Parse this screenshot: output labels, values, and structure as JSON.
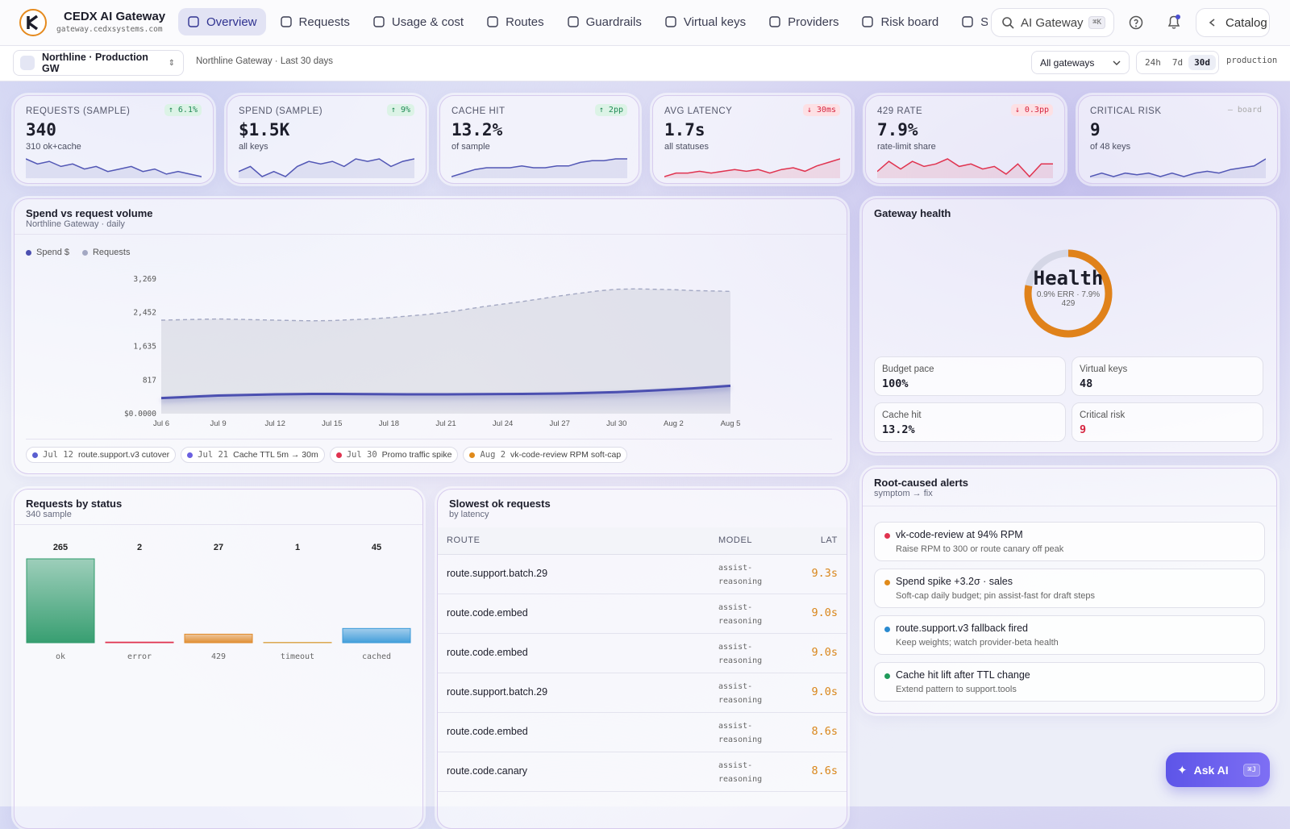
{
  "header": {
    "brand": "CEDX AI Gateway",
    "domain": "gateway.cedxsystems.com",
    "nav": [
      "Overview",
      "Requests",
      "Usage & cost",
      "Routes",
      "Guardrails",
      "Virtual keys",
      "Providers",
      "Risk board",
      "Sett"
    ],
    "active": 0,
    "search": "AI Gateway",
    "search_shortcut": "⌘K",
    "catalog": "Catalog"
  },
  "toolbar": {
    "workspace": "Northline · Production GW",
    "context": "Northline Gateway · Last 30 days",
    "gateway_filter": "All gateways",
    "ranges": [
      "24h",
      "7d",
      "30d"
    ],
    "active_range": 2,
    "environment": "production"
  },
  "kpis": [
    {
      "label": "REQUESTS (SAMPLE)",
      "value": "340",
      "sub": "310 ok+cache",
      "delta": "↑ 6.1%",
      "trend": "up",
      "color": "#5257b5",
      "spark": [
        10,
        9,
        9.5,
        8.5,
        9,
        8,
        8.5,
        7.5,
        8,
        8.5,
        7.5,
        8,
        7,
        7.5,
        7,
        6.5
      ]
    },
    {
      "label": "SPEND (SAMPLE)",
      "value": "$1.5K",
      "sub": "all keys",
      "delta": "↑ 9%",
      "trend": "up",
      "color": "#5257b5",
      "spark": [
        6,
        7,
        5,
        6,
        5,
        7,
        8,
        7.5,
        8,
        7,
        8.5,
        8,
        8.5,
        7,
        8,
        8.5
      ]
    },
    {
      "label": "CACHE HIT",
      "value": "13.2%",
      "sub": "of sample",
      "delta": "↑ 2pp",
      "trend": "up",
      "color": "#5257b5",
      "spark": [
        3,
        4,
        5,
        5.5,
        5.5,
        5.5,
        6,
        5.5,
        5.5,
        6,
        6,
        7,
        7.5,
        7.5,
        8,
        8
      ]
    },
    {
      "label": "AVG LATENCY",
      "value": "1.7s",
      "sub": "all statuses",
      "delta": "↓ 30ms",
      "trend": "down",
      "color": "#e0334f",
      "spark": [
        3,
        4,
        4,
        4.5,
        4,
        4.5,
        5,
        4.5,
        5,
        4,
        5,
        5.5,
        4.5,
        6,
        7,
        8
      ]
    },
    {
      "label": "429 RATE",
      "value": "7.9%",
      "sub": "rate-limit share",
      "delta": "↓ 0.3pp",
      "trend": "down",
      "color": "#e0334f",
      "spark": [
        4,
        8,
        5,
        8,
        6,
        7,
        9,
        6,
        7,
        5,
        6,
        3,
        7,
        2,
        7,
        7
      ]
    },
    {
      "label": "CRITICAL RISK",
      "value": "9",
      "sub": "of 48 keys",
      "delta": "— board",
      "trend": "neutral",
      "color": "#5257b5",
      "spark": [
        4,
        5,
        4,
        5,
        4.5,
        5,
        4,
        5,
        4,
        5,
        5.5,
        5,
        6,
        6.5,
        7,
        9
      ]
    }
  ],
  "chart_data": [
    {
      "type": "line",
      "title": "Spend vs request volume",
      "subtitle": "Northline Gateway · daily",
      "categories": [
        "Jul 6",
        null,
        null,
        "Jul 9",
        null,
        null,
        "Jul 12",
        null,
        null,
        "Jul 15",
        null,
        null,
        "Jul 18",
        null,
        null,
        "Jul 21",
        null,
        null,
        "Jul 24",
        null,
        null,
        "Jul 27",
        null,
        null,
        "Jul 30",
        null,
        null,
        "Aug 2",
        null,
        null,
        "Aug 5"
      ],
      "series": [
        {
          "name": "Spend $",
          "color": "#4b4fb0",
          "values": [
            380,
            400,
            420,
            440,
            450,
            460,
            470,
            475,
            480,
            480,
            478,
            475,
            472,
            470,
            470,
            470,
            472,
            475,
            478,
            480,
            485,
            490,
            500,
            510,
            525,
            545,
            565,
            590,
            615,
            645,
            677
          ]
        },
        {
          "name": "Requests",
          "color": "#a3a8c3",
          "area": true,
          "values": [
            2270,
            2280,
            2290,
            2300,
            2290,
            2280,
            2270,
            2260,
            2255,
            2260,
            2280,
            2300,
            2330,
            2370,
            2410,
            2460,
            2530,
            2600,
            2660,
            2720,
            2790,
            2860,
            2920,
            2980,
            3020,
            3030,
            3020,
            3010,
            2990,
            2980,
            2970
          ]
        }
      ],
      "ylim": [
        0,
        3269
      ],
      "yticks": [
        {
          "value": 0,
          "label": "$0.0000"
        },
        817,
        {
          "value": 1635,
          "label": "1,635"
        },
        {
          "value": 2452,
          "label": "2,452"
        },
        {
          "value": 3269,
          "label": "3,269"
        }
      ],
      "grid": false,
      "annotations": [
        {
          "date": "Jul 12",
          "text": "route.support.v3 cutover",
          "color": "#5a5fd0"
        },
        {
          "date": "Jul 21",
          "text": "Cache TTL 5m → 30m",
          "color": "#6a5fe0"
        },
        {
          "date": "Jul 30",
          "text": "Promo traffic spike",
          "color": "#e0334f"
        },
        {
          "date": "Aug 2",
          "text": "vk-code-review RPM soft-cap",
          "color": "#e08a1a"
        }
      ]
    },
    {
      "type": "bar",
      "title": "Requests by status",
      "subtitle": "340 sample",
      "categories": [
        "ok",
        "error",
        "429",
        "timeout",
        "cached"
      ],
      "values": [
        265,
        2,
        27,
        1,
        45
      ],
      "colors": [
        "#2e9a6a",
        "#e0334f",
        "#e08a2a",
        "#d9a040",
        "#3a9ad9"
      ]
    }
  ],
  "table": {
    "title": "Slowest ok requests",
    "subtitle": "by latency",
    "columns": [
      "ROUTE",
      "MODEL",
      "LAT"
    ],
    "rows": [
      [
        "route.support.batch.29",
        "assist-reasoning",
        "9.3s"
      ],
      [
        "route.code.embed",
        "assist-reasoning",
        "9.0s"
      ],
      [
        "route.code.embed",
        "assist-reasoning",
        "9.0s"
      ],
      [
        "route.support.batch.29",
        "assist-reasoning",
        "9.0s"
      ],
      [
        "route.code.embed",
        "assist-reasoning",
        "8.6s"
      ],
      [
        "route.code.canary",
        "assist-reasoning",
        "8.6s"
      ]
    ]
  },
  "health": {
    "title": "Gateway health",
    "donut_label": "Health",
    "donut_sub": "0.9% ERR · 7.9% 429",
    "score": 78,
    "score_lim": [
      0,
      100
    ],
    "stats": [
      {
        "label": "Budget pace",
        "value": "100%"
      },
      {
        "label": "Virtual keys",
        "value": "48"
      },
      {
        "label": "Cache hit",
        "value": "13.2%"
      },
      {
        "label": "Critical risk",
        "value": "9",
        "alert": true
      }
    ]
  },
  "alerts": {
    "title": "Root-caused alerts",
    "subtitle": "symptom → fix",
    "items": [
      {
        "title": "vk-code-review at 94% RPM",
        "fix": "Raise RPM to 300 or route canary off peak",
        "color": "#e0334f"
      },
      {
        "title": "Spend spike +3.2σ · sales",
        "fix": "Soft-cap daily budget; pin assist-fast for draft steps",
        "color": "#e08a1a"
      },
      {
        "title": "route.support.v3 fallback fired",
        "fix": "Keep weights; watch provider-beta health",
        "color": "#2a8ad0"
      },
      {
        "title": "Cache hit lift after TTL change",
        "fix": "Extend pattern to support.tools",
        "color": "#1f9a5a"
      }
    ]
  },
  "assistant": {
    "label": "Ask AI",
    "shortcut": "⌘J"
  }
}
